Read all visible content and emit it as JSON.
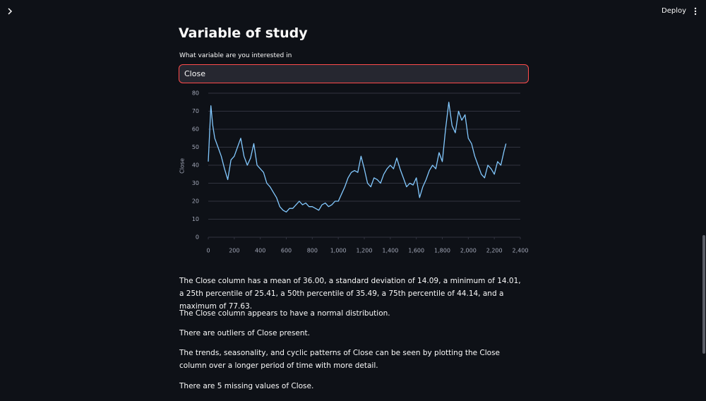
{
  "header": {
    "deploy": "Deploy"
  },
  "title": "Variable of study",
  "input_label": "What variable are you interested in",
  "input_value": "Close",
  "chart_data": {
    "type": "line",
    "ylabel": "Close",
    "color": "#83c9ff",
    "grid": true,
    "x": [
      0,
      20,
      35,
      50,
      75,
      100,
      125,
      150,
      175,
      200,
      225,
      250,
      275,
      300,
      325,
      350,
      375,
      400,
      425,
      450,
      475,
      500,
      525,
      550,
      575,
      600,
      625,
      650,
      675,
      700,
      725,
      750,
      775,
      800,
      825,
      850,
      875,
      900,
      925,
      950,
      975,
      1000,
      1025,
      1050,
      1075,
      1100,
      1125,
      1150,
      1175,
      1200,
      1225,
      1250,
      1275,
      1300,
      1325,
      1350,
      1375,
      1400,
      1425,
      1450,
      1475,
      1500,
      1525,
      1550,
      1575,
      1600,
      1625,
      1650,
      1675,
      1700,
      1725,
      1750,
      1775,
      1800,
      1825,
      1850,
      1875,
      1900,
      1925,
      1950,
      1975,
      2000,
      2025,
      2050,
      2075,
      2100,
      2125,
      2150,
      2175,
      2200,
      2225,
      2250,
      2275,
      2290
    ],
    "values": [
      42,
      73,
      62,
      55,
      50,
      45,
      38,
      32,
      43,
      45,
      50,
      55,
      45,
      40,
      44,
      52,
      40,
      38,
      36,
      30,
      28,
      25,
      22,
      17,
      15,
      14,
      16,
      16,
      18,
      20,
      18,
      19,
      17,
      17,
      16,
      15,
      18,
      19,
      17,
      18,
      20,
      20,
      24,
      28,
      33,
      36,
      37,
      36,
      45,
      38,
      30,
      28,
      33,
      32,
      30,
      35,
      38,
      40,
      38,
      44,
      38,
      33,
      28,
      30,
      29,
      33,
      22,
      28,
      32,
      37,
      40,
      38,
      47,
      42,
      60,
      75,
      62,
      58,
      70,
      65,
      68,
      55,
      52,
      45,
      40,
      35,
      33,
      40,
      38,
      35,
      42,
      40,
      48,
      52
    ],
    "xlim": [
      0,
      2400
    ],
    "xticks": [
      0,
      200,
      400,
      600,
      800,
      {
        "value": 1000,
        "label": "1,000"
      },
      {
        "value": 1200,
        "label": "1,200"
      },
      {
        "value": 1400,
        "label": "1,400"
      },
      {
        "value": 1600,
        "label": "1,600"
      },
      {
        "value": 1800,
        "label": "1,800"
      },
      {
        "value": 2000,
        "label": "2,000"
      },
      {
        "value": 2200,
        "label": "2,200"
      },
      {
        "value": 2400,
        "label": "2,400"
      }
    ],
    "ylim": [
      0,
      80
    ],
    "yticks": [
      0,
      10,
      20,
      30,
      40,
      50,
      60,
      70,
      80
    ]
  },
  "paragraphs": [
    "The Close column has a mean of 36.00, a standard deviation of 14.09, a minimum of 14.01, a 25th percentile of 25.41, a 50th percentile of 35.49, a 75th percentile of 44.14, and a maximum of 77.63.",
    "The Close column appears to have a normal distribution.",
    "There are outliers of Close present.",
    "The trends, seasonality, and cyclic patterns of Close can be seen by plotting the Close column over a longer period of time with more detail.",
    "There are 5 missing values of Close."
  ]
}
